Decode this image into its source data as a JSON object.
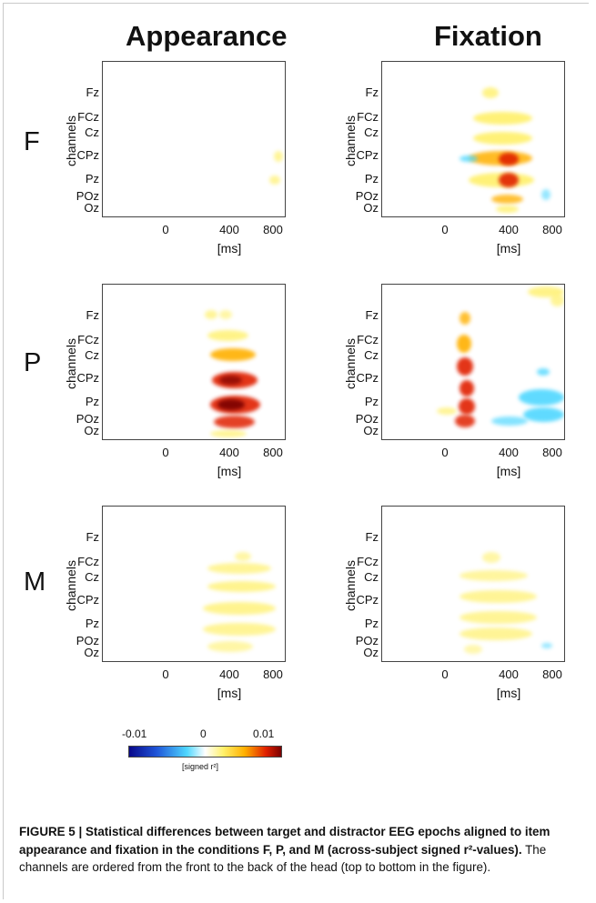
{
  "columns": [
    "Appearance",
    "Fixation"
  ],
  "rows": [
    "F",
    "P",
    "M"
  ],
  "channel_axis_title": "channels",
  "channels": [
    "Fz",
    "FCz",
    "Cz",
    "CPz",
    "Pz",
    "POz",
    "Oz"
  ],
  "x_ticks": [
    "0",
    "400",
    "800"
  ],
  "x_unit": "[ms]",
  "colorbar": {
    "ticks": [
      "-0.01",
      "0",
      "0.01"
    ],
    "label": "[signed r²]",
    "colors": [
      "#08088a",
      "#4fd7ff",
      "#ffffff",
      "#fff06a",
      "#ffb000",
      "#e02000",
      "#7a0000"
    ]
  },
  "caption": {
    "bold": "FIGURE 5 | Statistical differences between target and distractor EEG epochs aligned to item appearance and fixation in the conditions F, P, and M (across-subject signed r²-values).",
    "normal": "The channels are ordered from the front to the back of the head (top to bottom in the figure)."
  }
}
